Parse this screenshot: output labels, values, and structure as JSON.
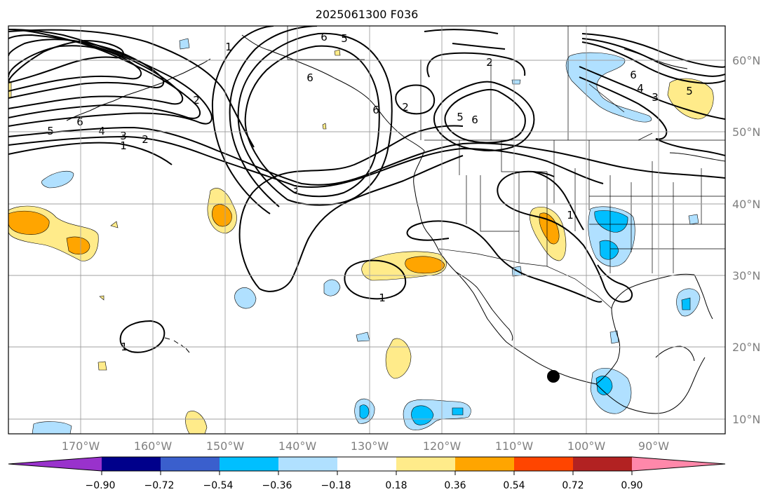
{
  "title": "2025061300 F036",
  "latitude_labels": [
    "60°N",
    "50°N",
    "40°N",
    "30°N",
    "20°N",
    "10°N"
  ],
  "longitude_labels": [
    "170°W",
    "160°W",
    "150°W",
    "140°W",
    "130°W",
    "120°W",
    "110°W",
    "100°W",
    "90°W"
  ],
  "colorbar": {
    "colors": [
      "#9932cc",
      "#00008b",
      "#3a5fcd",
      "#00bfff",
      "#b0e0ff",
      "#ffffff",
      "#ffeb8a",
      "#ffa500",
      "#ff4500",
      "#b22222",
      "#ff88aa"
    ],
    "ticks": [
      "−0.90",
      "−0.72",
      "−0.54",
      "−0.36",
      "−0.18",
      "0.18",
      "0.36",
      "0.54",
      "0.72",
      "0.90"
    ],
    "extend": "both"
  },
  "contour_labels": [
    "6",
    "5",
    "1",
    "2",
    "6",
    "2",
    "6",
    "5",
    "4",
    "3",
    "6",
    "5",
    "6",
    "4",
    "3",
    "1",
    "2",
    "2",
    "3",
    "5",
    "6",
    "1",
    "1",
    "1",
    "1"
  ],
  "marker": {
    "type": "filled-circle",
    "color": "#000000"
  }
}
